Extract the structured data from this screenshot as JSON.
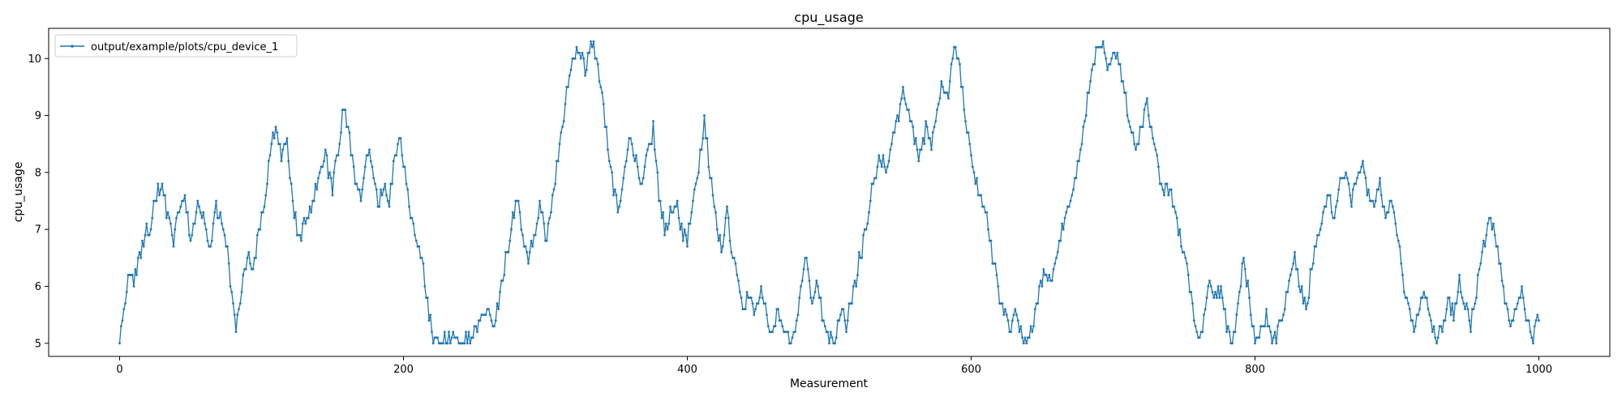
{
  "chart_data": {
    "type": "line",
    "title": "cpu_usage",
    "xlabel": "Measurement",
    "ylabel": "cpu_usage",
    "xlim": [
      -50,
      1050
    ],
    "ylim": [
      4.77,
      10.53
    ],
    "xticks": [
      0,
      200,
      400,
      600,
      800,
      1000
    ],
    "yticks": [
      5,
      6,
      7,
      8,
      9,
      10
    ],
    "xtick_labels": [
      "0",
      "200",
      "400",
      "600",
      "800",
      "1000"
    ],
    "ytick_labels": [
      "5",
      "6",
      "7",
      "8",
      "9",
      "10"
    ],
    "grid": false,
    "legend": {
      "position": "top-left"
    },
    "color": "#1f77b4",
    "marker": "dot",
    "series": [
      {
        "name": "output/example/plots/cpu_device_1",
        "keypoints": [
          [
            0,
            5.0
          ],
          [
            3,
            5.6
          ],
          [
            6,
            6.3
          ],
          [
            10,
            6.0
          ],
          [
            14,
            6.5
          ],
          [
            18,
            6.9
          ],
          [
            22,
            7.1
          ],
          [
            25,
            7.5
          ],
          [
            30,
            7.8
          ],
          [
            34,
            7.2
          ],
          [
            38,
            6.8
          ],
          [
            42,
            7.3
          ],
          [
            46,
            7.6
          ],
          [
            50,
            6.7
          ],
          [
            55,
            7.5
          ],
          [
            60,
            7.2
          ],
          [
            64,
            6.7
          ],
          [
            68,
            7.4
          ],
          [
            72,
            7.1
          ],
          [
            76,
            6.6
          ],
          [
            79,
            5.9
          ],
          [
            82,
            5.2
          ],
          [
            86,
            6.0
          ],
          [
            90,
            6.6
          ],
          [
            94,
            6.2
          ],
          [
            98,
            7.0
          ],
          [
            102,
            7.5
          ],
          [
            106,
            8.3
          ],
          [
            110,
            8.9
          ],
          [
            114,
            8.2
          ],
          [
            118,
            8.6
          ],
          [
            122,
            7.5
          ],
          [
            126,
            6.8
          ],
          [
            130,
            7.1
          ],
          [
            135,
            7.4
          ],
          [
            140,
            7.8
          ],
          [
            145,
            8.3
          ],
          [
            150,
            7.7
          ],
          [
            155,
            8.5
          ],
          [
            158,
            9.2
          ],
          [
            162,
            8.6
          ],
          [
            166,
            7.8
          ],
          [
            170,
            7.5
          ],
          [
            174,
            8.4
          ],
          [
            178,
            8.1
          ],
          [
            182,
            7.4
          ],
          [
            186,
            7.8
          ],
          [
            190,
            7.5
          ],
          [
            194,
            8.3
          ],
          [
            198,
            8.6
          ],
          [
            202,
            7.8
          ],
          [
            206,
            7.2
          ],
          [
            210,
            6.8
          ],
          [
            214,
            6.3
          ],
          [
            218,
            5.5
          ],
          [
            222,
            5.0
          ],
          [
            230,
            5.1
          ],
          [
            240,
            5.0
          ],
          [
            250,
            5.2
          ],
          [
            258,
            5.6
          ],
          [
            264,
            5.3
          ],
          [
            270,
            6.2
          ],
          [
            276,
            7.0
          ],
          [
            280,
            7.6
          ],
          [
            284,
            7.0
          ],
          [
            288,
            6.5
          ],
          [
            292,
            6.8
          ],
          [
            296,
            7.5
          ],
          [
            300,
            6.8
          ],
          [
            304,
            7.3
          ],
          [
            308,
            8.1
          ],
          [
            312,
            8.8
          ],
          [
            316,
            9.5
          ],
          [
            320,
            10.0
          ],
          [
            324,
            10.2
          ],
          [
            328,
            9.8
          ],
          [
            332,
            10.3
          ],
          [
            336,
            10.0
          ],
          [
            340,
            9.3
          ],
          [
            344,
            8.5
          ],
          [
            348,
            7.6
          ],
          [
            352,
            7.4
          ],
          [
            356,
            8.0
          ],
          [
            360,
            8.6
          ],
          [
            364,
            8.2
          ],
          [
            368,
            7.8
          ],
          [
            372,
            8.3
          ],
          [
            376,
            8.8
          ],
          [
            380,
            7.6
          ],
          [
            384,
            7.0
          ],
          [
            388,
            7.3
          ],
          [
            392,
            7.5
          ],
          [
            396,
            7.0
          ],
          [
            400,
            6.8
          ],
          [
            404,
            7.5
          ],
          [
            408,
            8.0
          ],
          [
            412,
            8.9
          ],
          [
            416,
            8.0
          ],
          [
            420,
            7.2
          ],
          [
            424,
            6.6
          ],
          [
            428,
            7.3
          ],
          [
            432,
            6.5
          ],
          [
            436,
            6.0
          ],
          [
            440,
            5.6
          ],
          [
            444,
            5.9
          ],
          [
            448,
            5.5
          ],
          [
            452,
            6.0
          ],
          [
            456,
            5.4
          ],
          [
            460,
            5.1
          ],
          [
            464,
            5.6
          ],
          [
            468,
            5.2
          ],
          [
            472,
            5.0
          ],
          [
            476,
            5.2
          ],
          [
            480,
            6.0
          ],
          [
            484,
            6.5
          ],
          [
            488,
            5.8
          ],
          [
            492,
            6.0
          ],
          [
            496,
            5.4
          ],
          [
            500,
            5.0
          ],
          [
            504,
            5.1
          ],
          [
            508,
            5.6
          ],
          [
            512,
            5.3
          ],
          [
            516,
            5.8
          ],
          [
            520,
            6.3
          ],
          [
            524,
            6.8
          ],
          [
            528,
            7.4
          ],
          [
            532,
            7.9
          ],
          [
            536,
            8.3
          ],
          [
            540,
            8.0
          ],
          [
            544,
            8.5
          ],
          [
            548,
            8.9
          ],
          [
            552,
            9.4
          ],
          [
            556,
            9.2
          ],
          [
            560,
            8.6
          ],
          [
            564,
            8.3
          ],
          [
            568,
            8.8
          ],
          [
            572,
            8.5
          ],
          [
            576,
            9.1
          ],
          [
            580,
            9.6
          ],
          [
            584,
            9.3
          ],
          [
            588,
            10.3
          ],
          [
            592,
            9.8
          ],
          [
            596,
            9.0
          ],
          [
            600,
            8.2
          ],
          [
            604,
            7.8
          ],
          [
            608,
            7.5
          ],
          [
            612,
            7.0
          ],
          [
            616,
            6.4
          ],
          [
            620,
            5.8
          ],
          [
            624,
            5.5
          ],
          [
            628,
            5.2
          ],
          [
            632,
            5.6
          ],
          [
            636,
            5.0
          ],
          [
            640,
            5.0
          ],
          [
            644,
            5.4
          ],
          [
            648,
            5.9
          ],
          [
            652,
            6.3
          ],
          [
            656,
            6.0
          ],
          [
            660,
            6.6
          ],
          [
            664,
            7.0
          ],
          [
            668,
            7.4
          ],
          [
            672,
            7.8
          ],
          [
            676,
            8.3
          ],
          [
            680,
            8.9
          ],
          [
            684,
            9.6
          ],
          [
            688,
            10.1
          ],
          [
            692,
            10.3
          ],
          [
            696,
            9.8
          ],
          [
            700,
            10.2
          ],
          [
            704,
            10.0
          ],
          [
            708,
            9.4
          ],
          [
            712,
            8.8
          ],
          [
            716,
            8.4
          ],
          [
            720,
            8.8
          ],
          [
            724,
            9.2
          ],
          [
            728,
            8.6
          ],
          [
            732,
            8.0
          ],
          [
            736,
            7.6
          ],
          [
            740,
            7.8
          ],
          [
            744,
            7.2
          ],
          [
            748,
            6.8
          ],
          [
            752,
            6.4
          ],
          [
            756,
            5.6
          ],
          [
            760,
            5.0
          ],
          [
            764,
            5.4
          ],
          [
            768,
            6.2
          ],
          [
            772,
            5.8
          ],
          [
            776,
            6.0
          ],
          [
            780,
            5.3
          ],
          [
            784,
            5.0
          ],
          [
            788,
            5.6
          ],
          [
            792,
            6.5
          ],
          [
            796,
            5.8
          ],
          [
            800,
            5.0
          ],
          [
            804,
            5.2
          ],
          [
            808,
            5.5
          ],
          [
            812,
            5.0
          ],
          [
            816,
            5.2
          ],
          [
            820,
            5.6
          ],
          [
            824,
            6.1
          ],
          [
            828,
            6.5
          ],
          [
            832,
            6.0
          ],
          [
            836,
            5.6
          ],
          [
            840,
            6.3
          ],
          [
            844,
            6.9
          ],
          [
            848,
            7.3
          ],
          [
            852,
            7.6
          ],
          [
            856,
            7.2
          ],
          [
            860,
            7.8
          ],
          [
            864,
            8.1
          ],
          [
            868,
            7.5
          ],
          [
            872,
            7.9
          ],
          [
            876,
            8.2
          ],
          [
            880,
            7.6
          ],
          [
            884,
            7.4
          ],
          [
            888,
            7.8
          ],
          [
            892,
            7.2
          ],
          [
            896,
            7.6
          ],
          [
            900,
            7.0
          ],
          [
            904,
            6.2
          ],
          [
            908,
            5.6
          ],
          [
            912,
            5.2
          ],
          [
            916,
            5.6
          ],
          [
            920,
            5.9
          ],
          [
            924,
            5.4
          ],
          [
            928,
            5.0
          ],
          [
            932,
            5.3
          ],
          [
            936,
            5.8
          ],
          [
            940,
            5.5
          ],
          [
            944,
            6.1
          ],
          [
            948,
            5.7
          ],
          [
            952,
            5.3
          ],
          [
            956,
            5.9
          ],
          [
            960,
            6.5
          ],
          [
            964,
            7.0
          ],
          [
            968,
            7.2
          ],
          [
            972,
            6.5
          ],
          [
            976,
            5.8
          ],
          [
            980,
            5.3
          ],
          [
            984,
            5.5
          ],
          [
            988,
            5.9
          ],
          [
            992,
            5.4
          ],
          [
            996,
            5.1
          ],
          [
            1000,
            5.5
          ]
        ]
      }
    ]
  }
}
